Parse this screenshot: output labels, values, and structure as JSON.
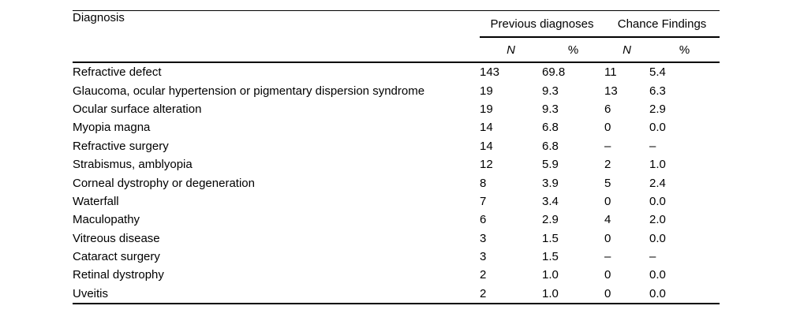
{
  "table": {
    "diagnosis_header": "Diagnosis",
    "group_previous": "Previous diagnoses",
    "group_chance": "Chance Findings",
    "sub_n_previous": "N",
    "sub_pct_previous": "%",
    "sub_n_chance": "N",
    "sub_pct_chance": "%",
    "colors": {
      "text": "#000000",
      "rule": "#000000",
      "background": "#ffffff"
    },
    "rows": [
      {
        "diagnosis": "Refractive defect",
        "prev_n": "143",
        "prev_pct": "69.8",
        "chance_n": "11",
        "chance_pct": "5.4"
      },
      {
        "diagnosis": "Glaucoma, ocular hypertension or pigmentary dispersion syndrome",
        "prev_n": "19",
        "prev_pct": "9.3",
        "chance_n": "13",
        "chance_pct": "6.3"
      },
      {
        "diagnosis": "Ocular surface alteration",
        "prev_n": "19",
        "prev_pct": "9.3",
        "chance_n": "6",
        "chance_pct": "2.9"
      },
      {
        "diagnosis": "Myopia magna",
        "prev_n": "14",
        "prev_pct": "6.8",
        "chance_n": "0",
        "chance_pct": "0.0"
      },
      {
        "diagnosis": "Refractive surgery",
        "prev_n": "14",
        "prev_pct": "6.8",
        "chance_n": "–",
        "chance_pct": "–"
      },
      {
        "diagnosis": "Strabismus, amblyopia",
        "prev_n": "12",
        "prev_pct": "5.9",
        "chance_n": "2",
        "chance_pct": "1.0"
      },
      {
        "diagnosis": "Corneal dystrophy or degeneration",
        "prev_n": "8",
        "prev_pct": "3.9",
        "chance_n": "5",
        "chance_pct": "2.4"
      },
      {
        "diagnosis": "Waterfall",
        "prev_n": "7",
        "prev_pct": "3.4",
        "chance_n": "0",
        "chance_pct": "0.0"
      },
      {
        "diagnosis": "Maculopathy",
        "prev_n": "6",
        "prev_pct": "2.9",
        "chance_n": "4",
        "chance_pct": "2.0"
      },
      {
        "diagnosis": "Vitreous disease",
        "prev_n": "3",
        "prev_pct": "1.5",
        "chance_n": "0",
        "chance_pct": "0.0"
      },
      {
        "diagnosis": "Cataract surgery",
        "prev_n": "3",
        "prev_pct": "1.5",
        "chance_n": "–",
        "chance_pct": "–"
      },
      {
        "diagnosis": "Retinal dystrophy",
        "prev_n": "2",
        "prev_pct": "1.0",
        "chance_n": "0",
        "chance_pct": "0.0"
      },
      {
        "diagnosis": "Uveitis",
        "prev_n": "2",
        "prev_pct": "1.0",
        "chance_n": "0",
        "chance_pct": "0.0"
      }
    ]
  }
}
